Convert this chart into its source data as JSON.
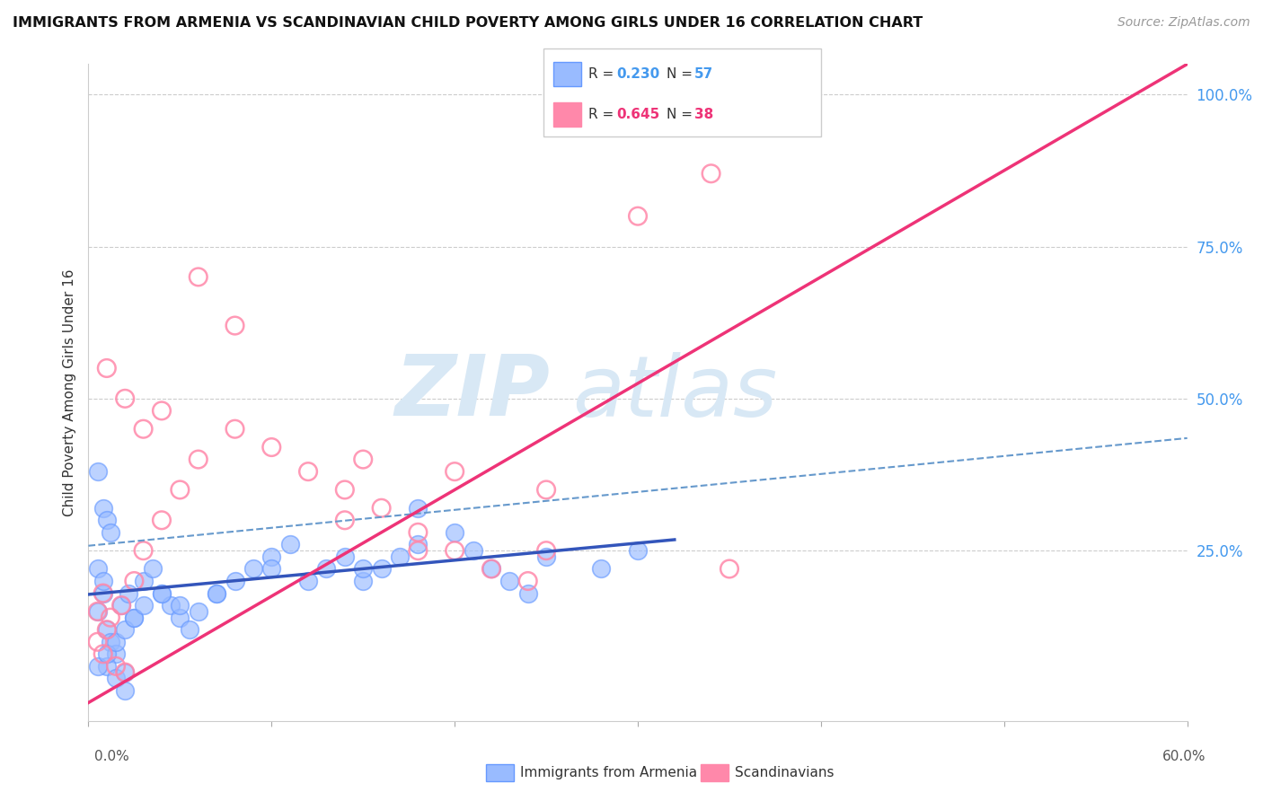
{
  "title": "IMMIGRANTS FROM ARMENIA VS SCANDINAVIAN CHILD POVERTY AMONG GIRLS UNDER 16 CORRELATION CHART",
  "source": "Source: ZipAtlas.com",
  "ylabel": "Child Poverty Among Girls Under 16",
  "xlim": [
    0.0,
    0.6
  ],
  "ylim": [
    -0.03,
    1.05
  ],
  "blue_color": "#6699FF",
  "blue_fill": "#99BBFF",
  "pink_color": "#FF88AA",
  "pink_fill": "none",
  "blue_line_color": "#3355BB",
  "pink_line_color": "#EE3377",
  "dashed_line_color": "#6699CC",
  "watermark_zip": "ZIP",
  "watermark_atlas": "atlas",
  "watermark_color": "#D8E8F5",
  "legend_r1": "0.230",
  "legend_n1": "57",
  "legend_r2": "0.645",
  "legend_n2": "38",
  "blue_scatter_x": [
    0.005,
    0.008,
    0.01,
    0.012,
    0.015,
    0.005,
    0.008,
    0.01,
    0.015,
    0.02,
    0.005,
    0.008,
    0.01,
    0.012,
    0.018,
    0.022,
    0.025,
    0.03,
    0.035,
    0.04,
    0.045,
    0.05,
    0.055,
    0.06,
    0.07,
    0.08,
    0.09,
    0.1,
    0.11,
    0.12,
    0.13,
    0.14,
    0.15,
    0.16,
    0.17,
    0.18,
    0.2,
    0.21,
    0.22,
    0.23,
    0.24,
    0.25,
    0.005,
    0.01,
    0.015,
    0.02,
    0.025,
    0.03,
    0.04,
    0.05,
    0.07,
    0.1,
    0.15,
    0.02,
    0.3,
    0.28,
    0.18
  ],
  "blue_scatter_y": [
    0.15,
    0.18,
    0.12,
    0.1,
    0.08,
    0.22,
    0.2,
    0.06,
    0.04,
    0.05,
    0.38,
    0.32,
    0.3,
    0.28,
    0.16,
    0.18,
    0.14,
    0.2,
    0.22,
    0.18,
    0.16,
    0.14,
    0.12,
    0.15,
    0.18,
    0.2,
    0.22,
    0.24,
    0.26,
    0.2,
    0.22,
    0.24,
    0.2,
    0.22,
    0.24,
    0.26,
    0.28,
    0.25,
    0.22,
    0.2,
    0.18,
    0.24,
    0.06,
    0.08,
    0.1,
    0.12,
    0.14,
    0.16,
    0.18,
    0.16,
    0.18,
    0.22,
    0.22,
    0.02,
    0.25,
    0.22,
    0.32
  ],
  "pink_scatter_x": [
    0.005,
    0.008,
    0.01,
    0.015,
    0.02,
    0.005,
    0.008,
    0.012,
    0.018,
    0.025,
    0.03,
    0.04,
    0.05,
    0.06,
    0.08,
    0.1,
    0.12,
    0.14,
    0.16,
    0.18,
    0.2,
    0.22,
    0.24,
    0.01,
    0.02,
    0.03,
    0.04,
    0.06,
    0.15,
    0.2,
    0.25,
    0.3,
    0.25,
    0.34,
    0.08,
    0.14,
    0.18,
    0.35
  ],
  "pink_scatter_y": [
    0.1,
    0.08,
    0.12,
    0.06,
    0.05,
    0.15,
    0.18,
    0.14,
    0.16,
    0.2,
    0.25,
    0.3,
    0.35,
    0.4,
    0.45,
    0.42,
    0.38,
    0.35,
    0.32,
    0.28,
    0.25,
    0.22,
    0.2,
    0.55,
    0.5,
    0.45,
    0.48,
    0.7,
    0.4,
    0.38,
    0.35,
    0.8,
    0.25,
    0.87,
    0.62,
    0.3,
    0.25,
    0.22
  ],
  "blue_line_x0": 0.0,
  "blue_line_y0": 0.178,
  "blue_line_x1": 0.32,
  "blue_line_y1": 0.268,
  "dashed_line_x0": 0.0,
  "dashed_line_y0": 0.258,
  "dashed_line_x1": 0.6,
  "dashed_line_y1": 0.435,
  "pink_line_x0": 0.0,
  "pink_line_y0": 0.0,
  "pink_line_x1": 0.6,
  "pink_line_y1": 1.05
}
